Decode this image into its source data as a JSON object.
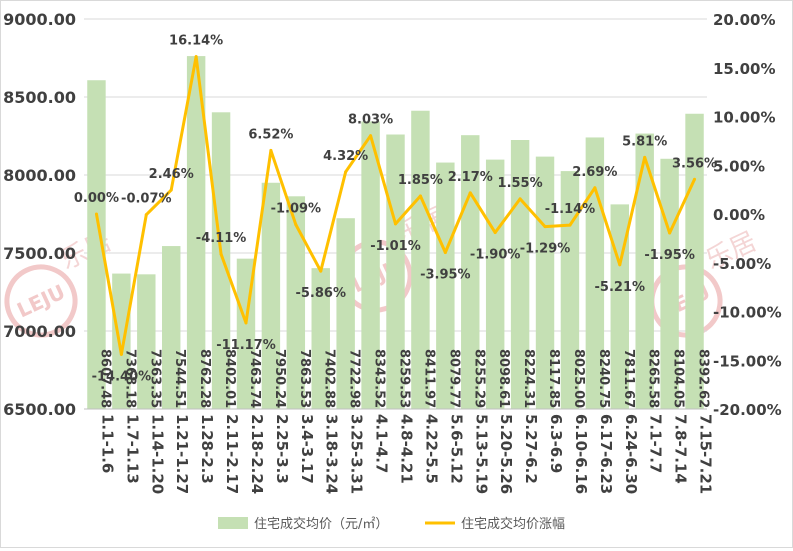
{
  "chart_data": {
    "type": "bar",
    "categories": [
      "1.1-1.6",
      "1.7-1.13",
      "1.14-1.20",
      "1.21-1.27",
      "1.28-2.3",
      "2.11-2.17",
      "2.18-2.24",
      "2.25-3.3",
      "3.4-3.17",
      "3.18-3.24",
      "3.25-3.31",
      "4.1-4.7",
      "4.8-4.21",
      "4.22-5.5",
      "5.6-5.12",
      "5.13-5.19",
      "5.20-5.26",
      "5.27-6.2",
      "6.3-6.9",
      "6.10-6.16",
      "6.17-6.23",
      "6.24-6.30",
      "7.1-7.7",
      "7.8-7.14",
      "7.15-7.21"
    ],
    "series": [
      {
        "name": "住宅成交均价（元/㎡）",
        "type": "bar",
        "axis": "left",
        "color": "#c5e0b4",
        "values": [
          8607.48,
          7368.18,
          7363.35,
          7544.51,
          8762.28,
          8402.01,
          7463.74,
          7950.24,
          7863.53,
          7402.88,
          7722.98,
          8343.52,
          8259.53,
          8411.97,
          8079.77,
          8255.29,
          8098.61,
          8224.31,
          8117.85,
          8025.0,
          8240.75,
          7811.67,
          8265.58,
          8104.05,
          8392.62
        ],
        "labels": [
          "8607.48",
          "7368.18",
          "7363.35",
          "7544.51",
          "8762.28",
          "8402.01",
          "7463.74",
          "7950.24",
          "7863.53",
          "7402.88",
          "7722.98",
          "8343.52",
          "8259.53",
          "8411.97",
          "8079.77",
          "8255.29",
          "8098.61",
          "8224.31",
          "8117.85",
          "8025.00",
          "8240.75",
          "7811.67",
          "8265.58",
          "8104.05",
          "8392.62"
        ]
      },
      {
        "name": "住宅成交均价涨幅",
        "type": "line",
        "axis": "right",
        "color": "#ffc000",
        "values": [
          0.0,
          -14.4,
          -0.07,
          2.46,
          16.14,
          -4.11,
          -11.17,
          6.52,
          -1.09,
          -5.86,
          4.32,
          8.03,
          -1.01,
          1.85,
          -3.95,
          2.17,
          -1.9,
          1.55,
          -1.29,
          -1.14,
          2.69,
          -5.21,
          5.81,
          -1.95,
          3.56
        ],
        "labels": [
          "0.00%",
          "-14.40%",
          "-0.07%",
          "2.46%",
          "16.14%",
          "-4.11%",
          "-11.17%",
          "6.52%",
          "-1.09%",
          "-5.86%",
          "4.32%",
          "8.03%",
          "-1.01%",
          "1.85%",
          "-3.95%",
          "2.17%",
          "-1.90%",
          "1.55%",
          "-1.29%",
          "-1.14%",
          "2.69%",
          "-5.21%",
          "5.81%",
          "-1.95%",
          "3.56%"
        ]
      }
    ],
    "ylim": [
      6500,
      9000
    ],
    "y_ticks": [
      "6500.00",
      "7000.00",
      "7500.00",
      "8000.00",
      "8500.00",
      "9000.00"
    ],
    "y2lim": [
      -20,
      20
    ],
    "y2_ticks": [
      "-20.00%",
      "-15.00%",
      "-10.00%",
      "-5.00%",
      "0.00%",
      "5.00%",
      "10.00%",
      "15.00%",
      "20.00%"
    ],
    "grid": true,
    "legend_position": "bottom",
    "watermark_text": "乐居",
    "watermark_logo": "LEJU"
  }
}
